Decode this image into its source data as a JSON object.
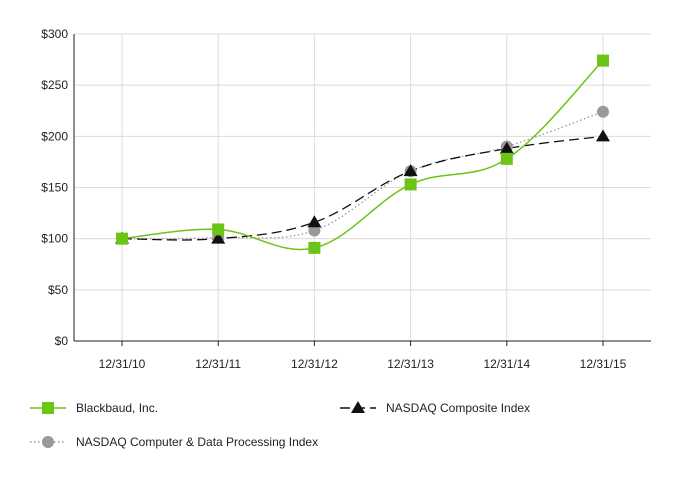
{
  "chart_data": {
    "type": "line",
    "title": "",
    "xlabel": "",
    "ylabel": "",
    "categories": [
      "12/31/10",
      "12/31/11",
      "12/31/12",
      "12/31/13",
      "12/31/14",
      "12/31/15"
    ],
    "ylim": [
      0,
      300
    ],
    "yticks": [
      0,
      50,
      100,
      150,
      200,
      250,
      300
    ],
    "ytick_labels": [
      "$0",
      "$50",
      "$100",
      "$150",
      "$200",
      "$250",
      "$300"
    ],
    "grid": "vertical-and-horizontal",
    "legend_position": "bottom",
    "series": [
      {
        "name": "Blackbaud, Inc.",
        "values": [
          100,
          109,
          91,
          153,
          178,
          274
        ],
        "color": "#6cc417",
        "line_style": "solid",
        "marker": "square"
      },
      {
        "name": "NASDAQ Composite Index",
        "values": [
          100,
          100,
          116,
          166,
          188,
          200
        ],
        "color": "#111111",
        "line_style": "dashed",
        "marker": "triangle"
      },
      {
        "name": "NASDAQ Computer & Data Processing Index",
        "values": [
          100,
          101,
          108,
          166,
          190,
          224
        ],
        "color": "#999999",
        "line_style": "dotted",
        "marker": "circle"
      }
    ]
  }
}
